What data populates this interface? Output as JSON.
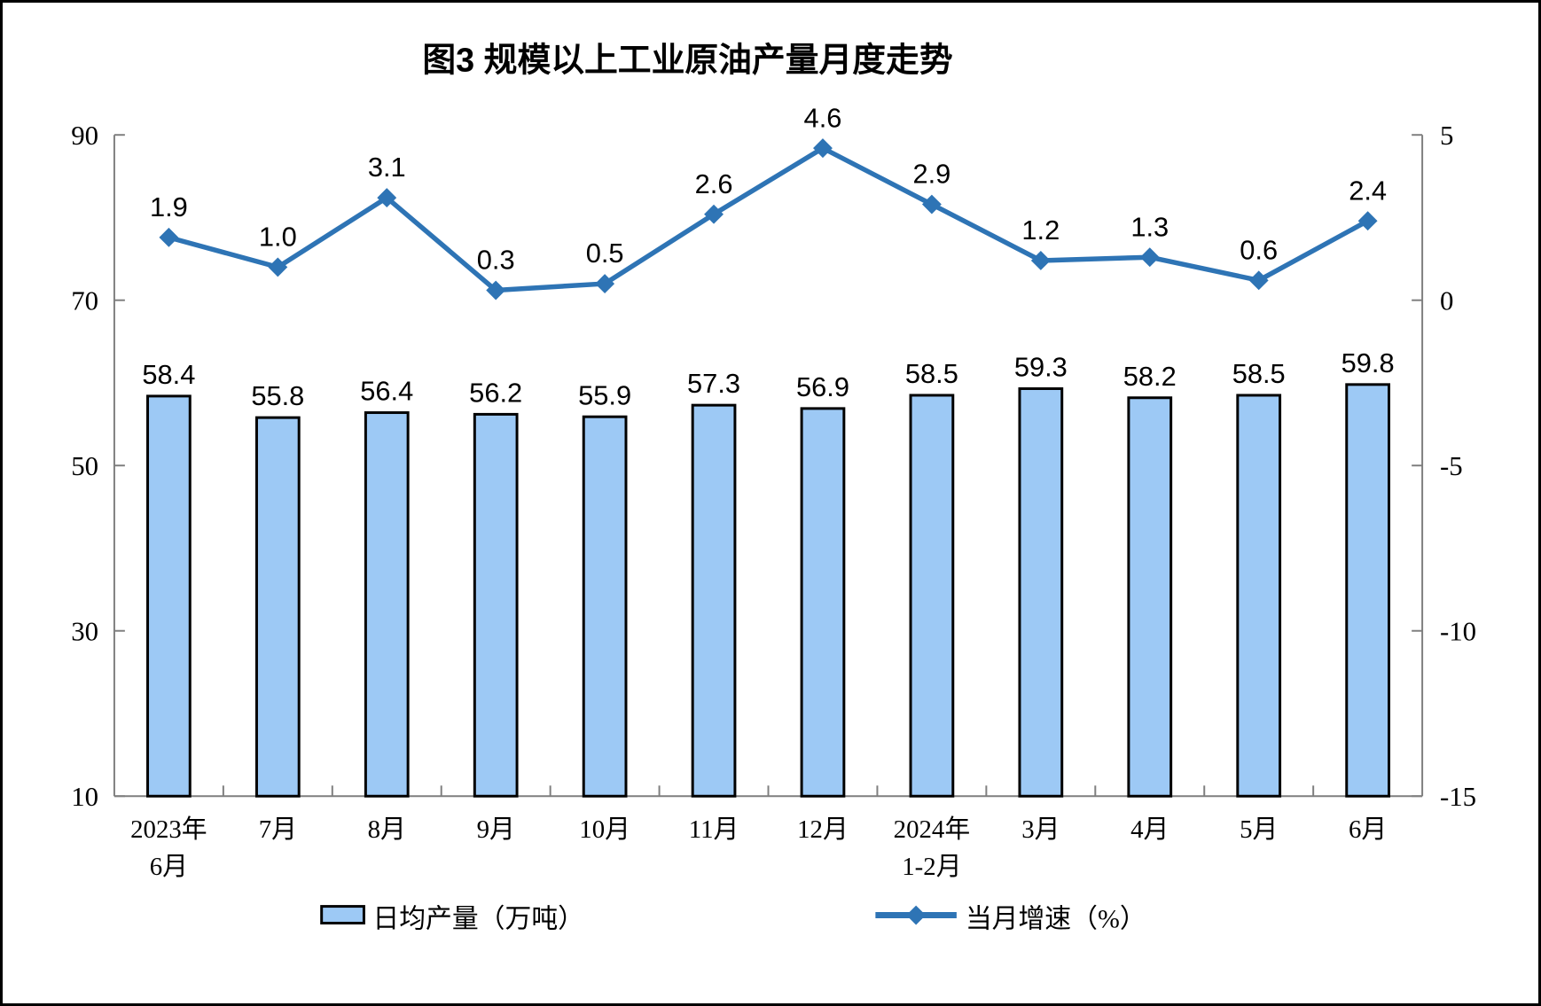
{
  "title": "图3 规模以上工业原油产量月度走势",
  "legend": {
    "bar_label": "日均产量（万吨）",
    "line_label": "当月增速（%）"
  },
  "colors": {
    "bar_fill": "#9DC9F5",
    "bar_border": "#000000",
    "line": "#2E74B5",
    "axis_line": "#7F7F7F",
    "text": "#000000"
  },
  "chart_data": {
    "type": "bar+line combo",
    "title": "图3 规模以上工业原油产量月度走势",
    "categories": [
      [
        "2023年",
        "6月"
      ],
      [
        "7月"
      ],
      [
        "8月"
      ],
      [
        "9月"
      ],
      [
        "10月"
      ],
      [
        "11月"
      ],
      [
        "12月"
      ],
      [
        "2024年",
        "1-2月"
      ],
      [
        "3月"
      ],
      [
        "4月"
      ],
      [
        "5月"
      ],
      [
        "6月"
      ]
    ],
    "series": [
      {
        "name": "日均产量（万吨）",
        "type": "bar",
        "axis": "left",
        "values": [
          58.4,
          55.8,
          56.4,
          56.2,
          55.9,
          57.3,
          56.9,
          58.5,
          59.3,
          58.2,
          58.5,
          59.8
        ]
      },
      {
        "name": "当月增速（%）",
        "type": "line",
        "axis": "right",
        "values": [
          1.9,
          1.0,
          3.1,
          0.3,
          0.5,
          2.6,
          4.6,
          2.9,
          1.2,
          1.3,
          0.6,
          2.4
        ]
      }
    ],
    "left_axis": {
      "min": 10,
      "max": 90,
      "ticks": [
        10,
        30,
        50,
        70,
        90
      ]
    },
    "right_axis": {
      "min": -15,
      "max": 5,
      "ticks": [
        -15,
        -10,
        -5,
        0,
        5
      ]
    },
    "grid": false,
    "legend_position": "bottom",
    "data_labels": true
  }
}
